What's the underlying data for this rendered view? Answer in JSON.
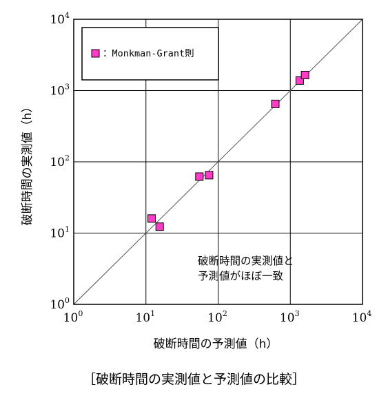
{
  "chart_data": {
    "type": "scatter",
    "xscale": "log",
    "yscale": "log",
    "xlim": [
      1,
      10000
    ],
    "ylim": [
      1,
      10000
    ],
    "grid": true,
    "xlabel": "破断時間の予測値（h）",
    "ylabel": "破断時間の実測値（h）",
    "x_ticks": [
      {
        "base": "10",
        "exp": "0"
      },
      {
        "base": "10",
        "exp": "1"
      },
      {
        "base": "10",
        "exp": "2"
      },
      {
        "base": "10",
        "exp": "3"
      },
      {
        "base": "10",
        "exp": "4"
      }
    ],
    "y_ticks": [
      {
        "base": "10",
        "exp": "0"
      },
      {
        "base": "10",
        "exp": "1"
      },
      {
        "base": "10",
        "exp": "2"
      },
      {
        "base": "10",
        "exp": "3"
      },
      {
        "base": "10",
        "exp": "4"
      }
    ],
    "reference_line": "y = x",
    "legend_position": "top-left",
    "series": [
      {
        "name": "：Monkman-Grant則",
        "marker": "square",
        "color": "#ff3cc8",
        "points": [
          {
            "x": 12,
            "y": 16
          },
          {
            "x": 15.5,
            "y": 12.3
          },
          {
            "x": 55,
            "y": 62
          },
          {
            "x": 75,
            "y": 65
          },
          {
            "x": 620,
            "y": 650
          },
          {
            "x": 1350,
            "y": 1380
          },
          {
            "x": 1600,
            "y": 1650
          }
        ]
      }
    ],
    "annotation": [
      "破断時間の実測値と",
      "予測値がほぼ一致"
    ]
  },
  "caption": "［破断時間の実測値と予測値の比較］"
}
